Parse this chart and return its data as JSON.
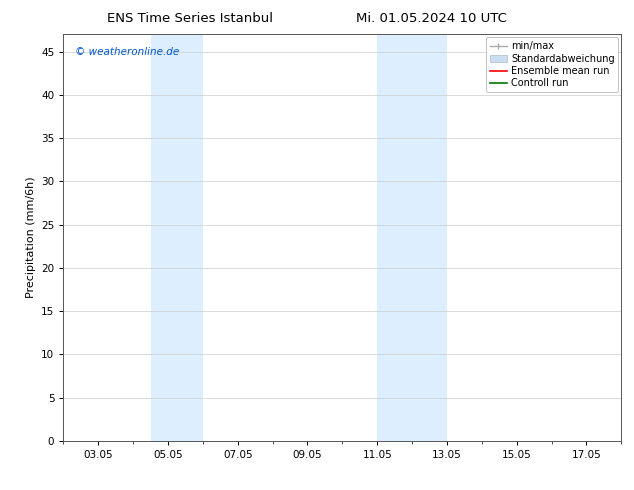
{
  "title_left": "ENS Time Series Istanbul",
  "title_right": "Mi. 01.05.2024 10 UTC",
  "ylabel": "Precipitation (mm/6h)",
  "xlabel": "",
  "ylim": [
    0,
    47
  ],
  "yticks": [
    0,
    5,
    10,
    15,
    20,
    25,
    30,
    35,
    40,
    45
  ],
  "xtick_labels": [
    "03.05",
    "05.05",
    "07.05",
    "09.05",
    "11.05",
    "13.05",
    "15.05",
    "17.05"
  ],
  "xtick_positions": [
    3,
    5,
    7,
    9,
    11,
    13,
    15,
    17
  ],
  "xlim": [
    2.0,
    18.0
  ],
  "shaded_regions": [
    {
      "xmin": 4.5,
      "xmax": 6.0,
      "color": "#ddeeff"
    },
    {
      "xmin": 11.0,
      "xmax": 13.0,
      "color": "#ddeeff"
    }
  ],
  "background_color": "#ffffff",
  "plot_bg_color": "#ffffff",
  "grid_color": "#cccccc",
  "watermark_text": "© weatheronline.de",
  "watermark_color": "#0055cc",
  "legend_items": [
    {
      "label": "min/max",
      "color": "#aaaaaa",
      "style": "minmax"
    },
    {
      "label": "Standardabweichung",
      "color": "#ccddef",
      "style": "fill"
    },
    {
      "label": "Ensemble mean run",
      "color": "#ff0000",
      "style": "line"
    },
    {
      "label": "Controll run",
      "color": "#007700",
      "style": "line"
    }
  ],
  "title_fontsize": 9.5,
  "axis_label_fontsize": 8,
  "tick_fontsize": 7.5,
  "legend_fontsize": 7,
  "watermark_fontsize": 7.5
}
